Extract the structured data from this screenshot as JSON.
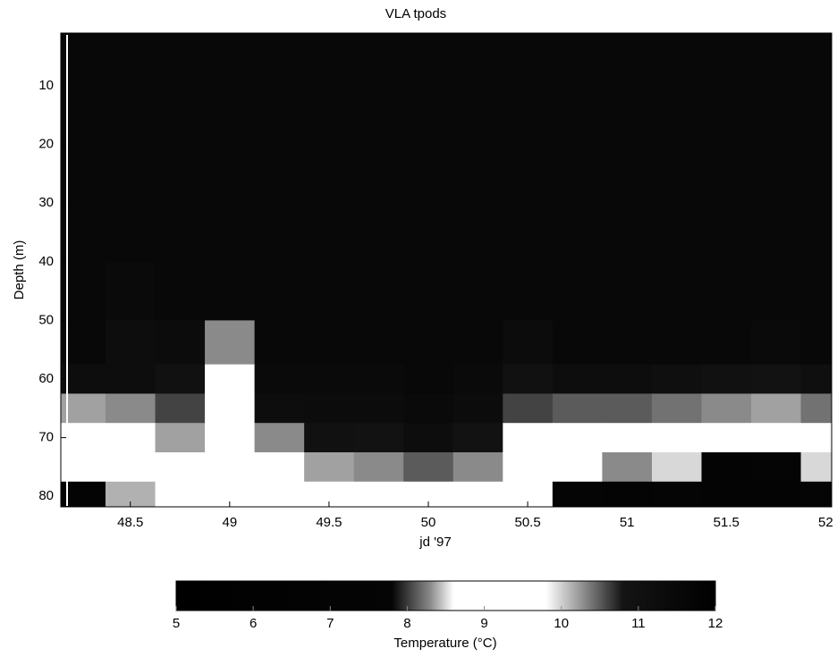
{
  "chart_data": {
    "type": "heatmap",
    "title": "VLA tpods",
    "xlabel": "jd '97",
    "ylabel": "Depth (m)",
    "x": [
      48.25,
      48.5,
      48.75,
      49,
      49.25,
      49.5,
      49.75,
      50,
      50.25,
      50.5,
      50.75,
      51,
      51.25,
      51.5,
      51.75,
      52
    ],
    "y": [
      5,
      15,
      25,
      35,
      45,
      55,
      60,
      65,
      70,
      75,
      80
    ],
    "z": [
      [
        11.5,
        11.5,
        11.5,
        11.5,
        11.5,
        11.5,
        11.5,
        11.5,
        11.5,
        11.5,
        11.5,
        11.5,
        11.5,
        11.5,
        11.5,
        11.5
      ],
      [
        11.5,
        11.5,
        11.5,
        11.5,
        11.5,
        11.5,
        11.5,
        11.5,
        11.5,
        11.5,
        11.5,
        11.5,
        11.5,
        11.5,
        11.5,
        11.5
      ],
      [
        11.5,
        11.5,
        11.5,
        11.5,
        11.5,
        11.5,
        11.5,
        11.5,
        11.5,
        11.5,
        11.5,
        11.5,
        11.5,
        11.5,
        11.5,
        11.5
      ],
      [
        11.5,
        11.5,
        11.5,
        11.5,
        11.5,
        11.5,
        11.5,
        11.5,
        11.5,
        11.5,
        11.5,
        11.5,
        11.5,
        11.5,
        11.5,
        11.5
      ],
      [
        11.5,
        11.4,
        11.5,
        11.5,
        11.5,
        11.5,
        11.5,
        11.5,
        11.5,
        11.5,
        11.5,
        11.5,
        11.5,
        11.5,
        11.5,
        11.5
      ],
      [
        11.5,
        11.2,
        11.3,
        10.3,
        11.5,
        11.5,
        11.5,
        11.5,
        11.5,
        11.3,
        11.5,
        11.5,
        11.5,
        11.5,
        11.4,
        11.5
      ],
      [
        11.2,
        11.2,
        11,
        9.2,
        11.4,
        11.4,
        11.4,
        11.5,
        11.4,
        11,
        11.2,
        11.2,
        11.1,
        11,
        10.9,
        11.1
      ],
      [
        10.2,
        10.3,
        10.6,
        9,
        11.2,
        11.3,
        11.3,
        11.4,
        11.3,
        10.6,
        10.5,
        10.5,
        10.4,
        10.3,
        10.2,
        10.4
      ],
      [
        9,
        9,
        10.2,
        9,
        10.3,
        11,
        10.9,
        11.2,
        10.9,
        9,
        9,
        9,
        9,
        9,
        9,
        9
      ],
      [
        8.6,
        9,
        9,
        9,
        9.5,
        10.2,
        10.3,
        10.5,
        10.3,
        9,
        8.7,
        8.3,
        8.5,
        7.5,
        7.8,
        8.5
      ],
      [
        7.5,
        8.4,
        9,
        9,
        9,
        9,
        9,
        9,
        9,
        9,
        7.6,
        7.5,
        7.6,
        7.3,
        7.4,
        7.6
      ]
    ],
    "xlim": [
      48.15,
      52.03
    ],
    "ylim": [
      1,
      81.8
    ],
    "y_reversed": true,
    "xticks": [
      48.5,
      49,
      49.5,
      50,
      50.5,
      51,
      51.5,
      52
    ],
    "yticks": [
      10,
      20,
      30,
      40,
      50,
      60,
      70,
      80
    ],
    "colorbar": {
      "label": "Temperature (°C)",
      "clim": [
        5,
        12
      ],
      "ticks": [
        5,
        6,
        7,
        8,
        9,
        10,
        11,
        12
      ],
      "stops": [
        [
          5,
          "#000000"
        ],
        [
          7.8,
          "#050505"
        ],
        [
          8.3,
          "#8a8a8a"
        ],
        [
          8.6,
          "#ffffff"
        ],
        [
          9.8,
          "#ffffff"
        ],
        [
          10.3,
          "#8a8a8a"
        ],
        [
          10.8,
          "#141414"
        ],
        [
          12,
          "#000000"
        ]
      ]
    }
  }
}
